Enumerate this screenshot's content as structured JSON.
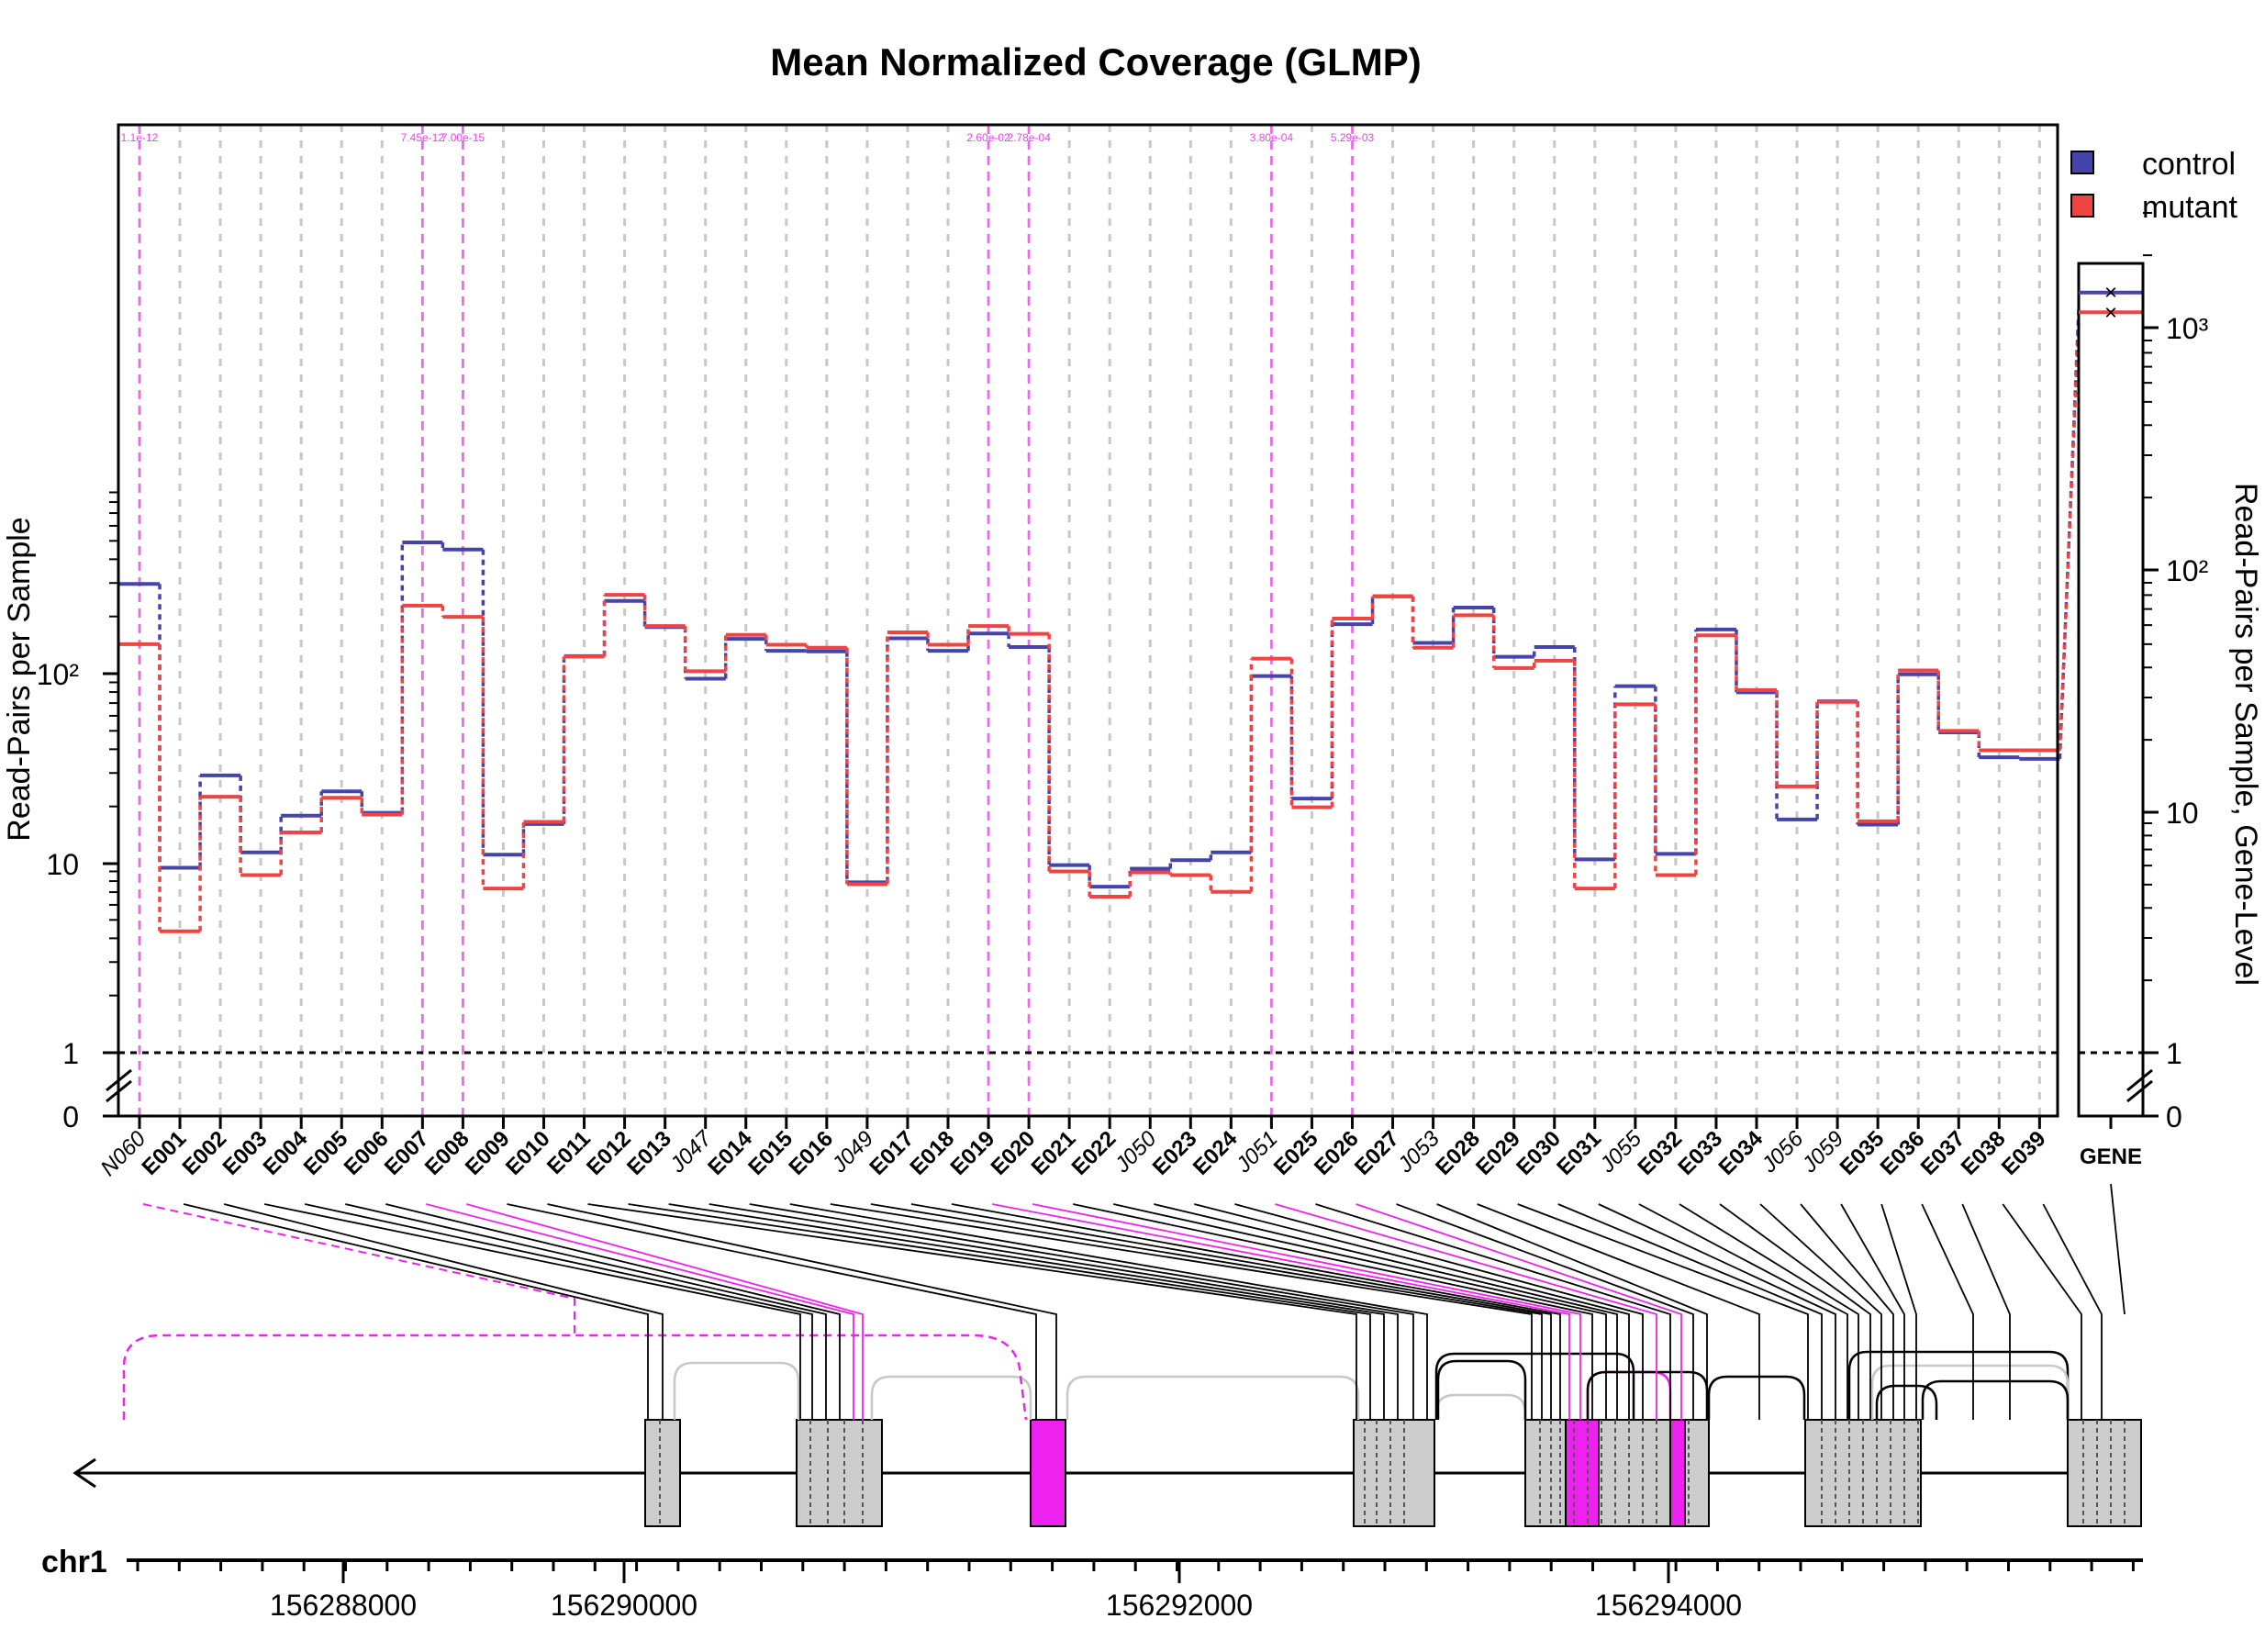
{
  "chart_data": {
    "type": "line",
    "title": "Mean Normalized Coverage (GLMP)",
    "ylabel": "Read-Pairs per Sample",
    "ylabel_right": "Read-Pairs per Sample, Gene-Level",
    "y_scale": "log",
    "ylim": [
      1,
      600
    ],
    "y_ticks": [
      "0",
      "1",
      "10",
      "10²"
    ],
    "y_ticks_right": [
      "0",
      "1",
      "10",
      "10²",
      "10³"
    ],
    "features": [
      {
        "id": "N060",
        "kind": "novel"
      },
      {
        "id": "E001",
        "kind": "exon"
      },
      {
        "id": "E002",
        "kind": "exon"
      },
      {
        "id": "E003",
        "kind": "exon"
      },
      {
        "id": "E004",
        "kind": "exon"
      },
      {
        "id": "E005",
        "kind": "exon"
      },
      {
        "id": "E006",
        "kind": "exon"
      },
      {
        "id": "E007",
        "kind": "exon"
      },
      {
        "id": "E008",
        "kind": "exon"
      },
      {
        "id": "E009",
        "kind": "exon"
      },
      {
        "id": "E010",
        "kind": "exon"
      },
      {
        "id": "E011",
        "kind": "exon"
      },
      {
        "id": "E012",
        "kind": "exon"
      },
      {
        "id": "E013",
        "kind": "exon"
      },
      {
        "id": "J047",
        "kind": "junction"
      },
      {
        "id": "E014",
        "kind": "exon"
      },
      {
        "id": "E015",
        "kind": "exon"
      },
      {
        "id": "E016",
        "kind": "exon"
      },
      {
        "id": "J049",
        "kind": "junction"
      },
      {
        "id": "E017",
        "kind": "exon"
      },
      {
        "id": "E018",
        "kind": "exon"
      },
      {
        "id": "E019",
        "kind": "exon"
      },
      {
        "id": "E020",
        "kind": "exon"
      },
      {
        "id": "E021",
        "kind": "exon"
      },
      {
        "id": "E022",
        "kind": "exon"
      },
      {
        "id": "J050",
        "kind": "junction"
      },
      {
        "id": "E023",
        "kind": "exon"
      },
      {
        "id": "E024",
        "kind": "exon"
      },
      {
        "id": "J051",
        "kind": "junction"
      },
      {
        "id": "E025",
        "kind": "exon"
      },
      {
        "id": "E026",
        "kind": "exon"
      },
      {
        "id": "E027",
        "kind": "exon"
      },
      {
        "id": "J053",
        "kind": "junction"
      },
      {
        "id": "E028",
        "kind": "exon"
      },
      {
        "id": "E029",
        "kind": "exon"
      },
      {
        "id": "E030",
        "kind": "exon"
      },
      {
        "id": "E031",
        "kind": "exon"
      },
      {
        "id": "J055",
        "kind": "junction"
      },
      {
        "id": "E032",
        "kind": "exon"
      },
      {
        "id": "E033",
        "kind": "exon"
      },
      {
        "id": "E034",
        "kind": "exon"
      },
      {
        "id": "J056",
        "kind": "junction"
      },
      {
        "id": "J059",
        "kind": "junction"
      },
      {
        "id": "E035",
        "kind": "exon"
      },
      {
        "id": "E036",
        "kind": "exon"
      },
      {
        "id": "E037",
        "kind": "exon"
      },
      {
        "id": "E038",
        "kind": "exon"
      },
      {
        "id": "E039",
        "kind": "exon"
      }
    ],
    "series": [
      {
        "name": "control",
        "color": "#4444aa",
        "values": [
          290,
          9.3,
          28.5,
          11.2,
          17.5,
          23.5,
          18.1,
          480,
          440,
          10.9,
          15.8,
          121,
          236,
          172,
          92,
          149,
          129,
          128,
          7.8,
          150,
          129,
          159,
          135,
          9.6,
          7.4,
          9.2,
          10.2,
          11.2,
          95,
          21.5,
          178,
          250,
          142,
          218,
          120,
          135,
          10.3,
          84,
          11.0,
          167,
          78,
          16.7,
          70,
          15.7,
          97,
          48,
          35.5,
          34.8
        ]
      },
      {
        "name": "mutant",
        "color": "#ee4444",
        "values": [
          143,
          4.4,
          22.5,
          8.7,
          14.6,
          22.2,
          18.1,
          228,
          199,
          7.4,
          16.6,
          123,
          260,
          178,
          103,
          160,
          142,
          137,
          7.8,
          165,
          142,
          178,
          162,
          9.1,
          6.7,
          9.0,
          8.7,
          7.1,
          120,
          19.8,
          195,
          255,
          137,
          203,
          107,
          117,
          7.4,
          69,
          8.7,
          159,
          82,
          25.5,
          71,
          16.7,
          104,
          50,
          39.5,
          39.5
        ]
      }
    ],
    "significant": [
      {
        "feature": "N060",
        "p": "1.1e-12"
      },
      {
        "feature": "E007",
        "p": "7.45e-12"
      },
      {
        "feature": "E008",
        "p": "7.00e-15"
      },
      {
        "feature": "E019",
        "p": "2.60e-02"
      },
      {
        "feature": "E020",
        "p": "2.78e-04"
      },
      {
        "feature": "J051",
        "p": "3.80e-04"
      },
      {
        "feature": "E026",
        "p": "5.29e-03"
      }
    ],
    "gene_level": {
      "label": "GENE",
      "control": 1450,
      "mutant": 1200
    },
    "legend": {
      "position": "top-right",
      "entries": [
        "control",
        "mutant"
      ]
    },
    "genomic_axis": {
      "chromosome": "chr1",
      "ticks": [
        "156288000",
        "156290000",
        "156292000",
        "156294000"
      ]
    },
    "grid": true
  }
}
